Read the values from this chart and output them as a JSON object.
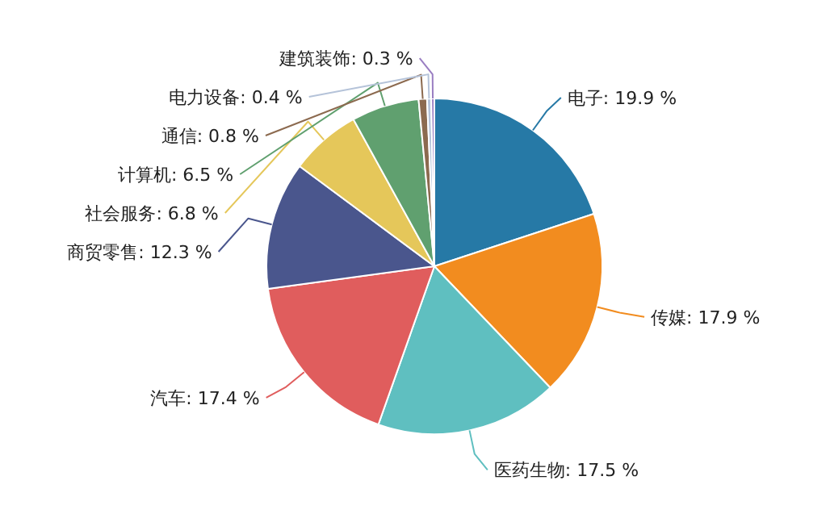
{
  "chart_data": {
    "type": "pie",
    "categories": [
      "电子",
      "传媒",
      "医药生物",
      "汽车",
      "商贸零售",
      "社会服务",
      "计算机",
      "通信",
      "电力设备",
      "建筑装饰"
    ],
    "values": [
      19.9,
      17.9,
      17.5,
      17.4,
      12.3,
      6.8,
      6.5,
      0.8,
      0.4,
      0.3
    ],
    "value_labels": [
      "19.9 %",
      "17.9 %",
      "17.5 %",
      "17.4 %",
      "12.3 %",
      "6.8 %",
      "6.5 %",
      "0.8 %",
      "0.4 %",
      "0.3 %"
    ],
    "colors": [
      "#2679a6",
      "#f28c1f",
      "#5fbfc0",
      "#e05d5d",
      "#4a568d",
      "#e5c75a",
      "#60a06f",
      "#8c6a4f",
      "#b5c3d9",
      "#9a7ec2"
    ]
  }
}
